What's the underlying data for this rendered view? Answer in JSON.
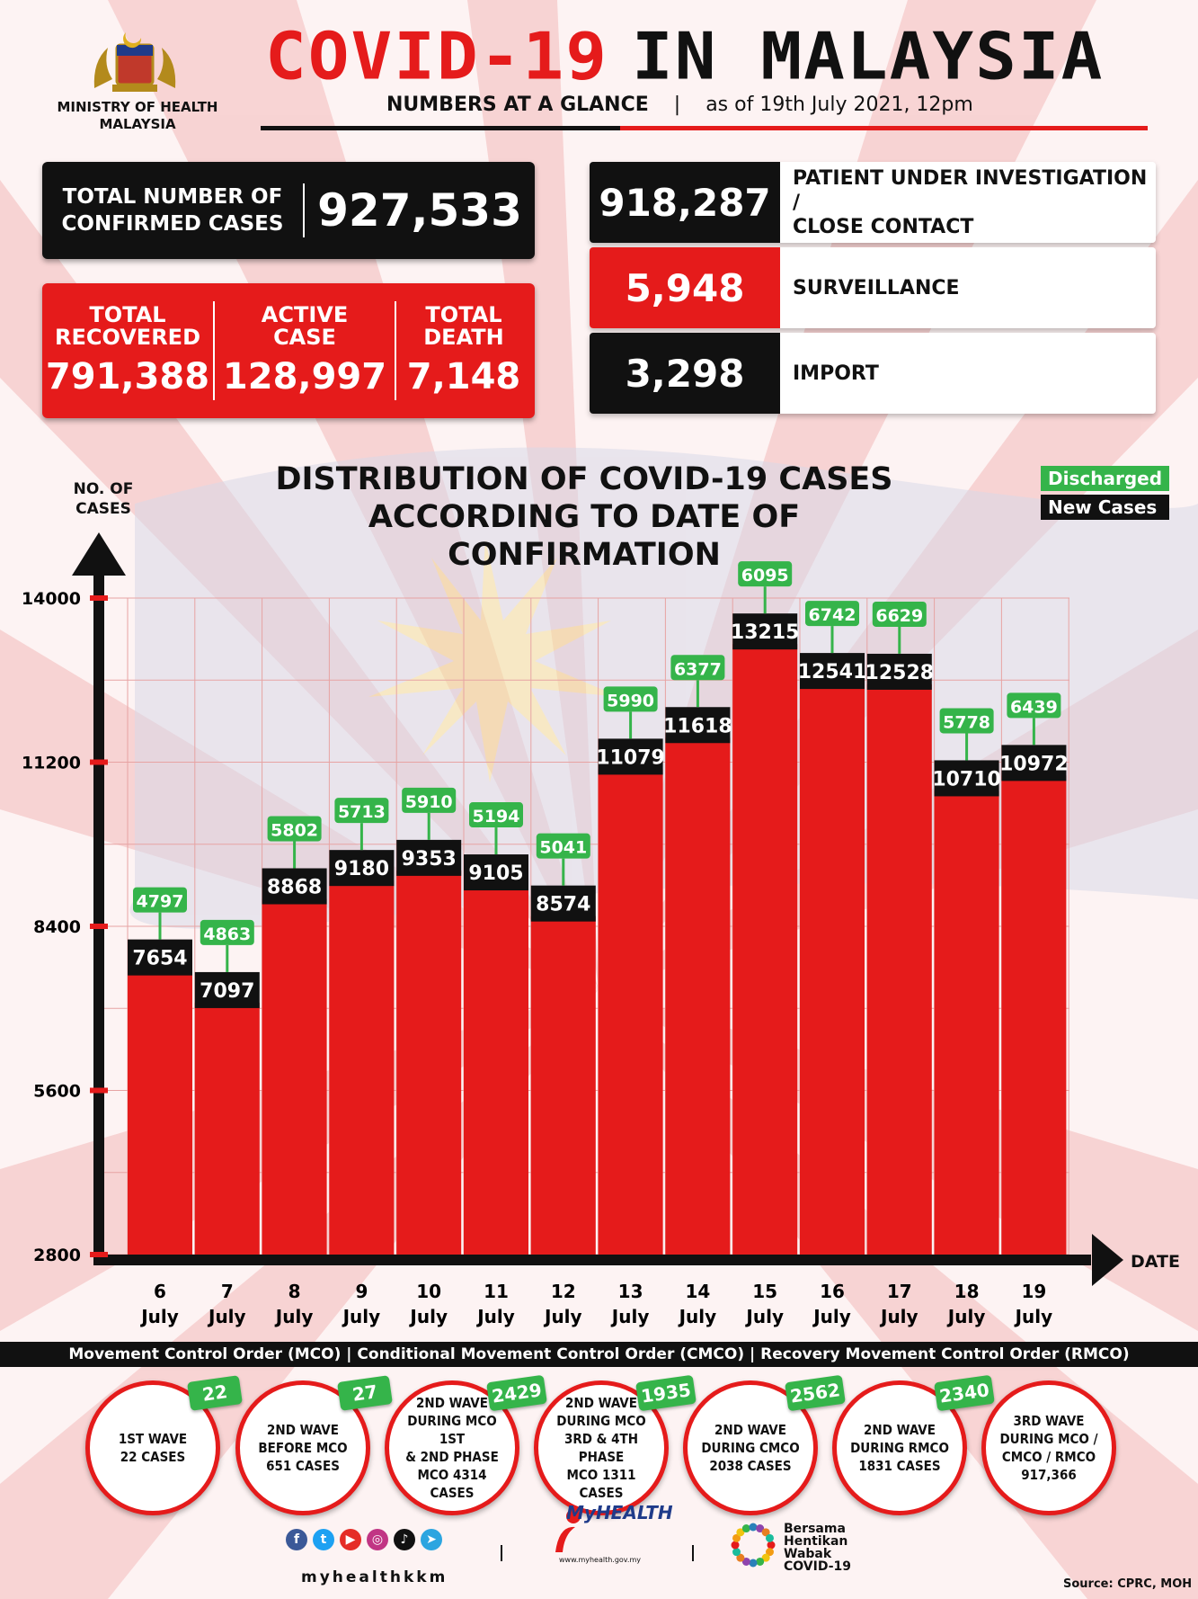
{
  "header": {
    "ministry_line1": "MINISTRY OF HEALTH",
    "ministry_line2": "MALAYSIA",
    "title_red": "COVID-19",
    "title_black": "IN MALAYSIA",
    "subtitle": "NUMBERS AT A GLANCE",
    "separator": "|",
    "as_of": "as of 19th July 2021, 12pm"
  },
  "stats": {
    "total_label_1": "TOTAL NUMBER OF",
    "total_label_2": "CONFIRMED CASES",
    "total_value": "927,533",
    "recovered_label_1": "TOTAL",
    "recovered_label_2": "RECOVERED",
    "recovered_value": "791,388",
    "active_label_1": "ACTIVE",
    "active_label_2": "CASE",
    "active_value": "128,997",
    "death_label_1": "TOTAL",
    "death_label_2": "DEATH",
    "death_value": "7,148"
  },
  "categories": [
    {
      "value": "918,287",
      "label_1": "PATIENT UNDER INVESTIGATION /",
      "label_2": "CLOSE CONTACT",
      "color": "#111111"
    },
    {
      "value": "5,948",
      "label_1": "SURVEILLANCE",
      "label_2": "",
      "color": "#e51b1b"
    },
    {
      "value": "3,298",
      "label_1": "IMPORT",
      "label_2": "",
      "color": "#111111"
    }
  ],
  "legend": {
    "discharged": "Discharged",
    "new_cases": "New Cases",
    "discharged_color": "#35b44a",
    "new_cases_color": "#111111"
  },
  "colors": {
    "red": "#e51b1b",
    "green": "#35b44a",
    "black": "#111111"
  },
  "chart_data": {
    "type": "bar",
    "title_line_1": "DISTRIBUTION OF COVID-19 CASES",
    "title_line_2": "ACCORDING TO DATE OF CONFIRMATION",
    "ylabel_1": "NO. OF",
    "ylabel_2": "CASES",
    "xlabel": "DATE",
    "ylim": [
      2800,
      14000
    ],
    "yticks": [
      2800,
      5600,
      8400,
      11200,
      14000
    ],
    "categories": [
      {
        "day": "6",
        "month": "July"
      },
      {
        "day": "7",
        "month": "July"
      },
      {
        "day": "8",
        "month": "July"
      },
      {
        "day": "9",
        "month": "July"
      },
      {
        "day": "10",
        "month": "July"
      },
      {
        "day": "11",
        "month": "July"
      },
      {
        "day": "12",
        "month": "July"
      },
      {
        "day": "13",
        "month": "July"
      },
      {
        "day": "14",
        "month": "July"
      },
      {
        "day": "15",
        "month": "July"
      },
      {
        "day": "16",
        "month": "July"
      },
      {
        "day": "17",
        "month": "July"
      },
      {
        "day": "18",
        "month": "July"
      },
      {
        "day": "19",
        "month": "July"
      }
    ],
    "series": [
      {
        "name": "New Cases",
        "values": [
          7654,
          7097,
          8868,
          9180,
          9353,
          9105,
          8574,
          11079,
          11618,
          13215,
          12541,
          12528,
          10710,
          10972
        ]
      },
      {
        "name": "Discharged",
        "values": [
          4797,
          4863,
          5802,
          5713,
          5910,
          5194,
          5041,
          5990,
          6377,
          6095,
          6742,
          6629,
          5778,
          6439
        ]
      }
    ],
    "legend_position": "top-right",
    "grid": true
  },
  "mco_bar": "Movement Control Order (MCO) | Conditional Movement Control Order (CMCO) | Recovery Movement Control Order (RMCO)",
  "waves": [
    {
      "lines": [
        "1ST WAVE",
        "22 CASES"
      ],
      "tag": "22"
    },
    {
      "lines": [
        "2ND WAVE",
        "BEFORE MCO",
        "651 CASES"
      ],
      "tag": "27"
    },
    {
      "lines": [
        "2ND WAVE",
        "DURING MCO 1ST",
        "& 2ND PHASE",
        "MCO 4314",
        "CASES"
      ],
      "tag": "2429"
    },
    {
      "lines": [
        "2ND WAVE",
        "DURING MCO",
        "3RD & 4TH PHASE",
        "MCO 1311",
        "CASES"
      ],
      "tag": "1935"
    },
    {
      "lines": [
        "2ND WAVE",
        "DURING CMCO",
        "2038 CASES"
      ],
      "tag": "2562"
    },
    {
      "lines": [
        "2ND WAVE",
        "DURING RMCO",
        "1831 CASES"
      ],
      "tag": "2340"
    },
    {
      "lines": [
        "3RD WAVE",
        "DURING MCO /",
        "CMCO / RMCO",
        "917,366"
      ],
      "tag": ""
    }
  ],
  "footer": {
    "handle": "myhealthkkm",
    "myhealth": "MyHEALTH",
    "myhealth_url": "www.myhealth.gov.my",
    "bersama_1": "Bersama",
    "bersama_2": "Hentikan",
    "bersama_3": "Wabak",
    "bersama_4": "COVID-19",
    "source": "Source: CPRC, MOH"
  }
}
